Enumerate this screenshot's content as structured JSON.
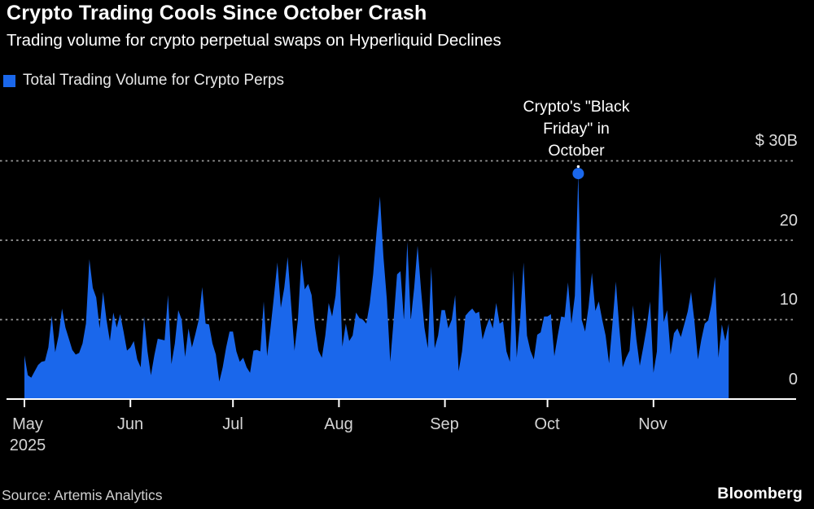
{
  "header": {
    "title": "Crypto Trading Cools Since October Crash",
    "subtitle": "Trading volume for crypto perpetual swaps on Hyperliquid Declines"
  },
  "legend": {
    "label": "Total Trading Volume for Crypto Perps"
  },
  "annotation": {
    "lines": [
      "Crypto's \"Black",
      "Friday\" in",
      "October"
    ]
  },
  "source": "Source: Artemis Analytics",
  "brand": "Bloomberg",
  "colors": {
    "background": "#000000",
    "series": "#1A67EB",
    "gridline": "#9d9d9d",
    "axis_line": "#ffffff",
    "marker": "#1A67EB",
    "leader_dot": "#ffffff"
  },
  "chart_data": {
    "type": "area",
    "title": "Crypto Trading Cools Since October Crash",
    "subtitle": "Trading volume for crypto perpetual swaps on Hyperliquid Declines",
    "unit": "billions of US dollars, daily",
    "ylim": [
      0,
      30
    ],
    "grid": "dashed-horizontal",
    "legend_position": "top-left",
    "y_ticks": [
      {
        "label": "$ 30B",
        "value": 30
      },
      {
        "label": "20",
        "value": 20
      },
      {
        "label": "10",
        "value": 10
      },
      {
        "label": "0",
        "value": 0
      }
    ],
    "x_ticks": [
      {
        "label": "May",
        "sublabel": "2025",
        "day": 0
      },
      {
        "label": "Jun",
        "day": 31
      },
      {
        "label": "Jul",
        "day": 61
      },
      {
        "label": "Aug",
        "day": 92
      },
      {
        "label": "Sep",
        "day": 123
      },
      {
        "label": "Oct",
        "day": 153
      },
      {
        "label": "Nov",
        "day": 184
      }
    ],
    "annotation_point": {
      "day": 162,
      "value": 28.4,
      "label": "Crypto's \"Black Friday\" in October"
    },
    "series": [
      {
        "name": "Total Trading Volume for Crypto Perps",
        "start": "May 1 2025",
        "values": [
          5.5,
          3.0,
          2.7,
          3.5,
          4.3,
          4.7,
          4.8,
          6.5,
          10.5,
          5.9,
          8.0,
          11.4,
          9.0,
          7.6,
          6.2,
          5.6,
          5.8,
          7.0,
          9.5,
          17.6,
          14.0,
          12.8,
          8.9,
          13.5,
          10.0,
          7.3,
          10.9,
          9.0,
          10.7,
          8.5,
          6.1,
          6.5,
          7.3,
          5.0,
          4.0,
          10.4,
          6.0,
          3.0,
          5.5,
          7.6,
          7.5,
          7.4,
          13.1,
          4.4,
          7.0,
          11.2,
          10.0,
          5.3,
          8.9,
          6.5,
          8.2,
          10.0,
          14.1,
          9.5,
          9.4,
          7.0,
          5.6,
          2.2,
          4.0,
          6.5,
          8.5,
          8.5,
          6.0,
          4.7,
          5.2,
          4.0,
          3.3,
          6.1,
          6.2,
          6.0,
          12.3,
          5.4,
          9.0,
          13.0,
          17.2,
          11.5,
          14.0,
          17.9,
          12.0,
          6.1,
          10.0,
          17.6,
          13.8,
          14.5,
          13.1,
          9.0,
          6.1,
          5.2,
          8.0,
          12.1,
          10.4,
          13.0,
          18.3,
          6.6,
          9.5,
          7.3,
          8.0,
          10.9,
          10.2,
          10.0,
          9.5,
          12.0,
          15.7,
          21.0,
          25.5,
          18.0,
          12.6,
          4.7,
          10.0,
          15.7,
          16.1,
          9.9,
          19.8,
          9.9,
          14.0,
          19.3,
          13.8,
          9.0,
          6.4,
          16.7,
          6.4,
          8.0,
          11.2,
          11.2,
          8.9,
          10.0,
          13.1,
          3.5,
          6.0,
          10.5,
          11.0,
          11.4,
          10.8,
          11.0,
          7.5,
          9.0,
          10.2,
          8.9,
          12.1,
          9.5,
          9.8,
          6.0,
          4.7,
          16.2,
          5.2,
          10.0,
          17.2,
          8.0,
          6.1,
          5.0,
          8.1,
          8.4,
          10.4,
          10.4,
          10.7,
          5.4,
          8.0,
          10.4,
          10.3,
          14.7,
          9.5,
          13.0,
          28.4,
          10.0,
          8.5,
          11.6,
          15.9,
          11.1,
          12.3,
          10.0,
          8.0,
          4.5,
          9.5,
          14.8,
          9.0,
          4.0,
          5.2,
          6.1,
          11.8,
          7.5,
          4.2,
          6.5,
          9.0,
          12.3,
          3.3,
          6.0,
          18.5,
          9.7,
          11.2,
          5.6,
          8.3,
          8.9,
          7.8,
          9.4,
          11.0,
          13.5,
          9.7,
          5.0,
          7.5,
          9.5,
          9.9,
          12.0,
          15.4,
          5.2,
          9.4,
          7.3,
          9.5
        ]
      }
    ]
  }
}
